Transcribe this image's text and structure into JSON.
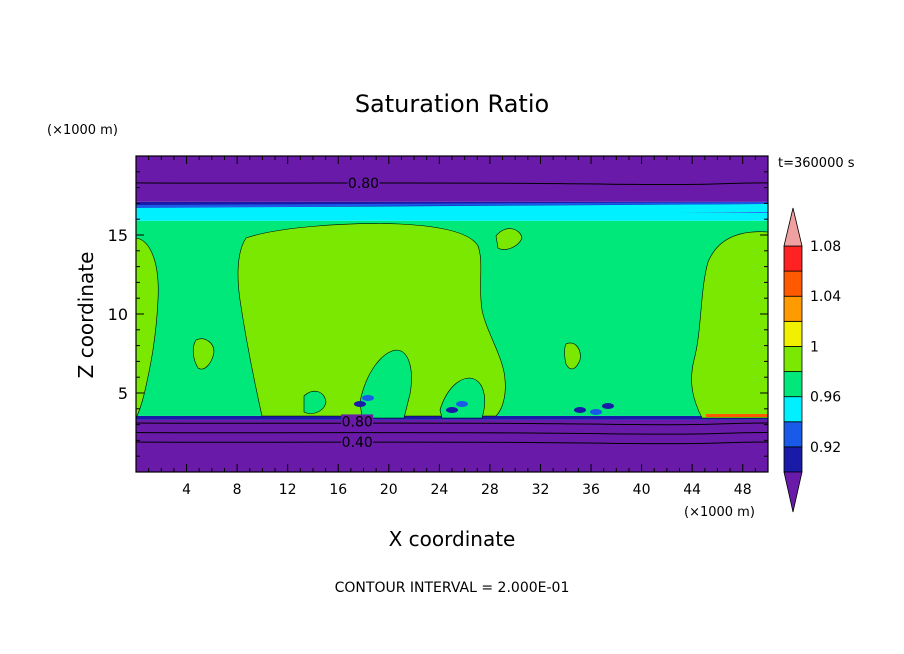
{
  "chart_data": {
    "type": "heatmap",
    "title": "Saturation Ratio",
    "xlabel": "X coordinate",
    "ylabel": "Z coordinate",
    "x_unit_label": "(×1000 m)",
    "y_unit_label": "(×1000 m)",
    "time_label": "t=360000 s",
    "footer": "CONTOUR INTERVAL = 2.000E-01",
    "xlim": [
      0,
      50
    ],
    "ylim": [
      0,
      20
    ],
    "x_ticks": [
      4,
      8,
      12,
      16,
      20,
      24,
      28,
      32,
      36,
      40,
      44,
      48
    ],
    "y_ticks": [
      5,
      10,
      15
    ],
    "colorbar": {
      "levels": [
        0.92,
        0.94,
        0.96,
        0.98,
        1.0,
        1.02,
        1.04,
        1.06,
        1.08
      ],
      "tick_labels": [
        "0.92",
        "0.96",
        "1",
        "1.04",
        "1.08"
      ],
      "colors": [
        "#6a1aa8",
        "#1a1aa8",
        "#1a5ae8",
        "#00f0ff",
        "#00e87a",
        "#7ae800",
        "#f0f000",
        "#ff9a00",
        "#ff5a00",
        "#ff2222",
        "#f0a0a0"
      ]
    },
    "contour_labels": [
      {
        "text": "0.80",
        "x": 18,
        "z": 18.3
      },
      {
        "text": "0.80",
        "x": 17.5,
        "z": 3.2
      },
      {
        "text": "0.40",
        "x": 17.5,
        "z": 1.9
      }
    ],
    "bands": [
      {
        "z0": 0,
        "z1": 3.3,
        "color": "#6a1aa8"
      },
      {
        "z0": 3.3,
        "z1": 3.55,
        "color": "#1a1aa8"
      },
      {
        "z0": 3.55,
        "z1": 15.9,
        "color": "#00e87a"
      },
      {
        "z0": 15.9,
        "z1": 16.4,
        "color": "#00f0ff"
      },
      {
        "z0": 16.4,
        "z1": 16.8,
        "color": "#1a5ae8"
      },
      {
        "z0": 16.8,
        "z1": 17.1,
        "color": "#1a1aa8"
      },
      {
        "z0": 17.1,
        "z1": 20,
        "color": "#6a1aa8"
      }
    ],
    "contour_lines_z": [
      18.3,
      3.1,
      2.5,
      1.9
    ]
  }
}
